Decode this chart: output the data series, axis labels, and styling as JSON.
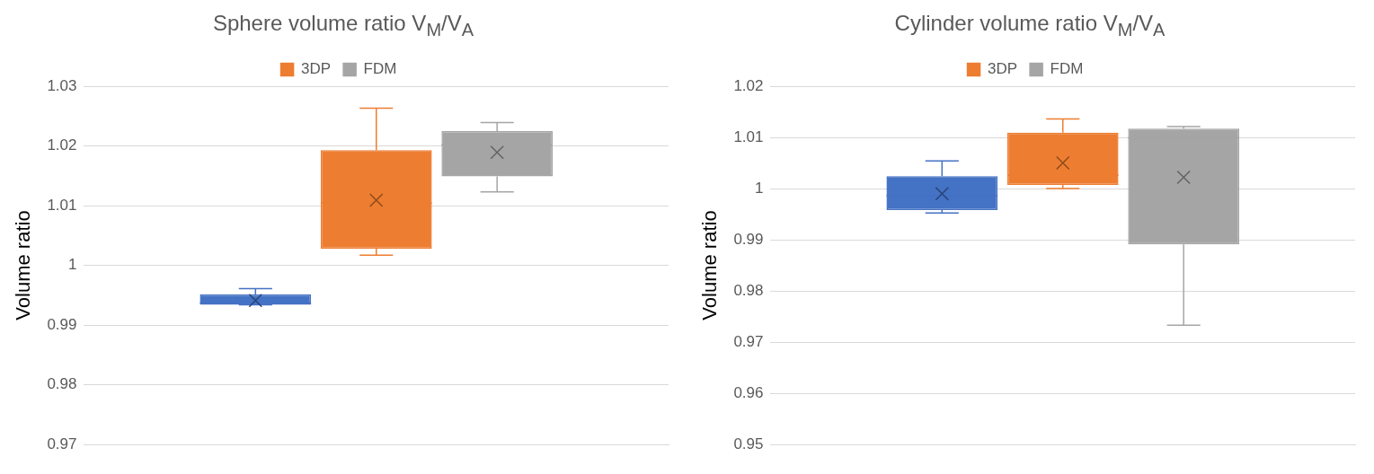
{
  "chart_data": [
    {
      "type": "box",
      "title": "Sphere volume ratio V$_{M}$/V$_{A}$",
      "ylabel": "Volume ratio",
      "categories": [
        null
      ],
      "ylim": [
        0.97,
        1.03
      ],
      "yticks": [
        0.97,
        0.98,
        0.99,
        1,
        1.01,
        1.02,
        1.03
      ],
      "grid": "y",
      "legend": "top",
      "tick_labels": "y",
      "series": [
        {
          "color": "#4472c4",
          "boxes": [
            {
              "low": 0.9934,
              "q1": 0.9934,
              "median": 0.9937,
              "q3": 0.9951,
              "high": 0.9961,
              "mean": 0.9941
            }
          ]
        },
        {
          "name": "3DP",
          "color": "#ed7d31",
          "boxes": [
            {
              "low": 1.0017,
              "q1": 1.0028,
              "median": 1.0104,
              "q3": 1.0193,
              "high": 1.0263,
              "mean": 1.0109
            }
          ]
        },
        {
          "name": "FDM",
          "color": "#a5a5a5",
          "boxes": [
            {
              "low": 1.0123,
              "q1": 1.0149,
              "median": 1.0202,
              "q3": 1.0225,
              "high": 1.0239,
              "mean": 1.0189
            }
          ]
        }
      ]
    },
    {
      "type": "box",
      "title": "Cylinder volume ratio V$_{M}$/V$_{A}$",
      "ylabel": "Volume ratio",
      "categories": [
        null
      ],
      "ylim": [
        0.95,
        1.02
      ],
      "yticks": [
        0.95,
        0.96,
        0.97,
        0.98,
        0.99,
        1,
        1.01,
        1.02
      ],
      "grid": "y",
      "legend": "top",
      "tick_labels": "y",
      "series": [
        {
          "color": "#4472c4",
          "boxes": [
            {
              "low": 0.9952,
              "q1": 0.9958,
              "median": 0.9986,
              "q3": 1.0024,
              "high": 1.0054,
              "mean": 0.999
            }
          ]
        },
        {
          "name": "3DP",
          "color": "#ed7d31",
          "boxes": [
            {
              "low": 1.0,
              "q1": 1.0007,
              "median": 1.0026,
              "q3": 1.0109,
              "high": 1.0136,
              "mean": 1.005
            }
          ]
        },
        {
          "name": "FDM",
          "color": "#a5a5a5",
          "boxes": [
            {
              "low": 0.9733,
              "q1": 0.9891,
              "median": 1.0099,
              "q3": 1.0117,
              "high": 1.0121,
              "mean": 1.0022
            }
          ]
        }
      ]
    }
  ]
}
